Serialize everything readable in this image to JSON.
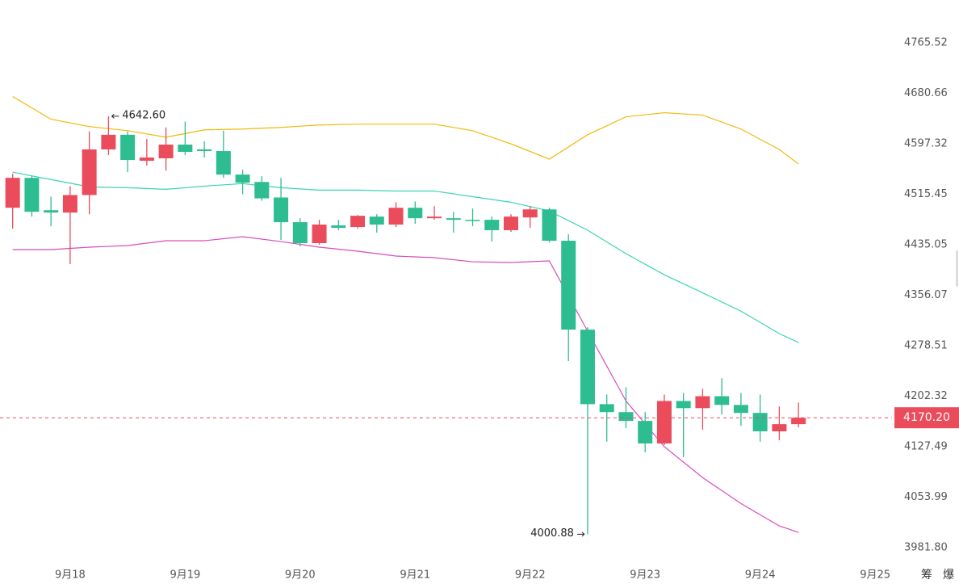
{
  "chart_data": {
    "type": "candlestick",
    "log": true,
    "x": [
      0,
      1,
      2,
      3,
      4,
      5,
      6,
      7,
      8,
      9,
      10,
      11,
      12,
      13,
      14,
      15,
      16,
      17,
      18,
      19,
      20,
      21,
      22,
      23,
      24,
      25,
      26,
      27,
      28,
      29,
      30,
      31,
      32,
      33,
      34,
      35,
      36,
      37,
      38,
      39,
      40,
      41
    ],
    "open": [
      4493.8,
      4541.9,
      4489.9,
      4486.1,
      4514.2,
      4588.1,
      4612.1,
      4569.6,
      4573.6,
      4596.0,
      4588.1,
      4585.4,
      4547.2,
      4535.3,
      4510.3,
      4470.8,
      4437.6,
      4465.7,
      4463.1,
      4479.7,
      4467.0,
      4493.8,
      4477.1,
      4477.1,
      4474.6,
      4474.6,
      4458.1,
      4478.4,
      4491.2,
      4441.4,
      4303.1,
      4190.4,
      4178.6,
      4165.5,
      4132.2,
      4195.2,
      4184.5,
      4202.3,
      4189.3,
      4177.4,
      4150.1,
      4160.7
    ],
    "high": [
      4548.5,
      4544.5,
      4511.6,
      4528.6,
      4617.5,
      4642.6,
      4617.5,
      4605.4,
      4624.2,
      4633.6,
      4601.4,
      4618.8,
      4555.0,
      4544.5,
      4541.9,
      4477.1,
      4474.6,
      4474.6,
      4482.3,
      4483.5,
      4502.7,
      4504.0,
      4496.3,
      4487.4,
      4492.5,
      4479.7,
      4483.5,
      4496.3,
      4493.8,
      4451.6,
      4306.8,
      4204.8,
      4215.8,
      4178.6,
      4204.8,
      4207.2,
      4213.4,
      4229.4,
      4207.2,
      4204.8,
      4186.9,
      4192.8
    ],
    "low": [
      4460.6,
      4479.7,
      4464.4,
      4404.5,
      4483.5,
      4578.8,
      4551.1,
      4561.7,
      4553.7,
      4578.8,
      4574.9,
      4541.9,
      4515.45,
      4505.1,
      4442.7,
      4432.5,
      4435.05,
      4458.1,
      4460.6,
      4454.2,
      4463.1,
      4468.2,
      4474.6,
      4454.2,
      4464.4,
      4440.1,
      4455.5,
      4461.9,
      4438.9,
      4255.2,
      4000.88,
      4134.9,
      4154.8,
      4119.2,
      4129.9,
      4112.1,
      4152.4,
      4175.0,
      4158.3,
      4134.9,
      4137.2,
      4156.0
    ],
    "close": [
      4541.9,
      4487.4,
      4486.1,
      4514.2,
      4588.1,
      4612.1,
      4570.9,
      4574.9,
      4596.0,
      4584.1,
      4585.4,
      4547.2,
      4534.0,
      4508.9,
      4470.8,
      4437.6,
      4467.0,
      4461.9,
      4481.0,
      4467.0,
      4493.8,
      4477.1,
      4479.7,
      4474.6,
      4473.3,
      4458.1,
      4479.7,
      4491.2,
      4441.4,
      4303.1,
      4190.4,
      4178.6,
      4165.5,
      4132.2,
      4195.2,
      4184.5,
      4202.3,
      4189.3,
      4177.4,
      4150.1,
      4160.7,
      4170.2
    ],
    "up_color": "#eb4c5c",
    "down_color": "#2ebd91",
    "bands": [
      {
        "color": "#f0b90b",
        "x": [
          0,
          2,
          4,
          6,
          8,
          10,
          12,
          14,
          16,
          18,
          20,
          22,
          24,
          26,
          28,
          30,
          32,
          34,
          36,
          38,
          40,
          41
        ],
        "values": [
          4675.3,
          4637.7,
          4625.6,
          4618.8,
          4608.1,
          4620.2,
          4621.5,
          4624.2,
          4628.2,
          4629.6,
          4629.6,
          4629.6,
          4618.8,
          4597.3,
          4572.2,
          4612.1,
          4641.7,
          4648.4,
          4644.4,
          4621.5,
          4588.1,
          4564.3
        ]
      },
      {
        "color": "#3bd4b2",
        "x": [
          0,
          2,
          4,
          6,
          8,
          10,
          12,
          14,
          16,
          18,
          20,
          22,
          24,
          26,
          28,
          30,
          32,
          34,
          36,
          38,
          40,
          41
        ],
        "values": [
          4551.1,
          4539.2,
          4527.3,
          4526.0,
          4523.4,
          4528.6,
          4532.6,
          4526.0,
          4522.1,
          4522.1,
          4520.7,
          4520.7,
          4511.6,
          4502.7,
          4488.7,
          4458.1,
          4421.0,
          4387.9,
          4359.9,
          4331.4,
          4297.0,
          4283.4
        ]
      },
      {
        "color": "#d94bbf",
        "x": [
          0,
          2,
          4,
          6,
          8,
          10,
          12,
          14,
          16,
          18,
          20,
          22,
          24,
          26,
          28,
          30,
          32,
          34,
          36,
          38,
          40,
          41
        ],
        "values": [
          4427.4,
          4427.4,
          4431.2,
          4433.8,
          4441.4,
          4441.4,
          4447.8,
          4440.1,
          4431.2,
          4424.9,
          4417.2,
          4414.7,
          4408.3,
          4407.1,
          4409.6,
          4300.7,
          4195.2,
          4127.49,
          4082.4,
          4044.8,
          4012.7,
          4003.6
        ]
      }
    ],
    "max_label": "4642.60",
    "min_label": "4000.88",
    "last_price": {
      "value": 4170.2,
      "label": "4170.20"
    },
    "xlim": [
      -0.66,
      45.88
    ],
    "xticks": [
      {
        "value": 3,
        "label": "9月18"
      },
      {
        "value": 9,
        "label": "9月19"
      },
      {
        "value": 15,
        "label": "9月20"
      },
      {
        "value": 21,
        "label": "9月21"
      },
      {
        "value": 27,
        "label": "9月22"
      },
      {
        "value": 33,
        "label": "9月23"
      },
      {
        "value": 39,
        "label": "9月24"
      },
      {
        "value": 45,
        "label": "9月25"
      }
    ],
    "ylim": [
      3956.7,
      4838.7
    ],
    "yticks": [
      4765.52,
      4680.66,
      4597.32,
      4515.45,
      4435.05,
      4356.07,
      4278.51,
      4202.32,
      4127.49,
      4053.99,
      {
        "value": 3981.8,
        "label": "3981.80"
      }
    ],
    "toolbar": [
      "筹",
      "爆"
    ]
  }
}
